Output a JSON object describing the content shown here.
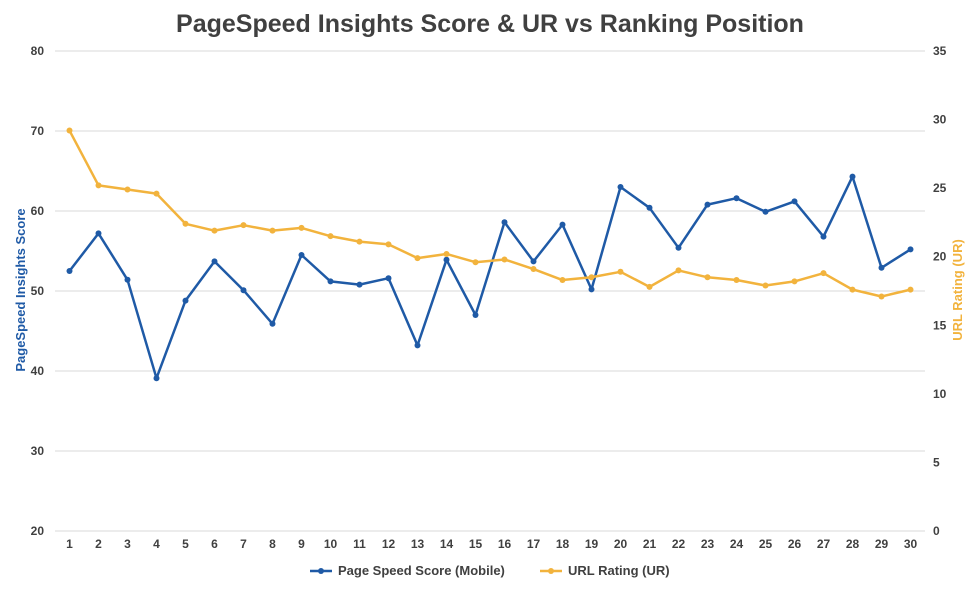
{
  "chart_data": {
    "type": "line",
    "title": "PageSpeed Insights Score & UR vs Ranking Position",
    "xlabel": "",
    "ylabel": "PageSpeed Insights Score",
    "y2label": "URL Rating (UR)",
    "ylim": [
      20,
      80
    ],
    "y2lim": [
      0,
      35
    ],
    "y_ticks": [
      20,
      30,
      40,
      50,
      60,
      70,
      80
    ],
    "y2_ticks": [
      0,
      5,
      10,
      15,
      20,
      25,
      30,
      35
    ],
    "categories": [
      1,
      2,
      3,
      4,
      5,
      6,
      7,
      8,
      9,
      10,
      11,
      12,
      13,
      14,
      15,
      16,
      17,
      18,
      19,
      20,
      21,
      22,
      23,
      24,
      25,
      26,
      27,
      28,
      29,
      30
    ],
    "grid": true,
    "legend_position": "bottom",
    "series": [
      {
        "name": "Page Speed Score (Mobile)",
        "axis": "left",
        "color": "#1f5aa6",
        "values": [
          52.5,
          57.2,
          51.4,
          39.1,
          48.8,
          53.7,
          50.1,
          45.9,
          54.5,
          51.2,
          50.8,
          51.6,
          43.2,
          53.9,
          47.0,
          58.6,
          53.7,
          58.3,
          50.2,
          63.0,
          60.4,
          55.4,
          60.8,
          61.6,
          59.9,
          61.2,
          56.8,
          64.3,
          52.9,
          55.2
        ]
      },
      {
        "name": "URL Rating (UR)",
        "axis": "right",
        "color": "#f2b33d",
        "values": [
          29.2,
          25.2,
          24.9,
          24.6,
          22.4,
          21.9,
          22.3,
          21.9,
          22.1,
          21.5,
          21.1,
          20.9,
          19.9,
          20.2,
          19.6,
          19.8,
          19.1,
          18.3,
          18.5,
          18.9,
          17.8,
          19.0,
          18.5,
          18.3,
          17.9,
          18.2,
          18.8,
          17.6,
          17.1,
          17.6
        ]
      }
    ]
  }
}
